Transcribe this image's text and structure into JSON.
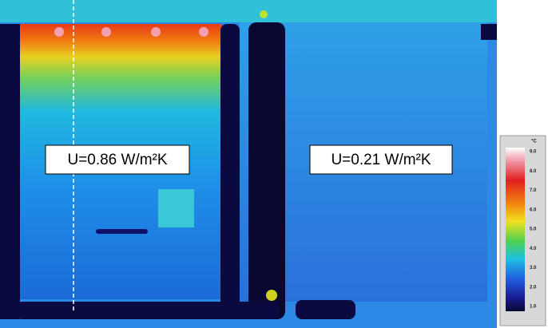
{
  "image": {
    "labels": [
      "U=0.86 W/m²K",
      "U=0.21 W/m²K"
    ],
    "scale": {
      "unit": "°C",
      "ticks": [
        "9.0",
        "8.0",
        "7.0",
        "6.0",
        "5.0",
        "4.0",
        "3.0",
        "2.0",
        "1.0"
      ]
    }
  }
}
